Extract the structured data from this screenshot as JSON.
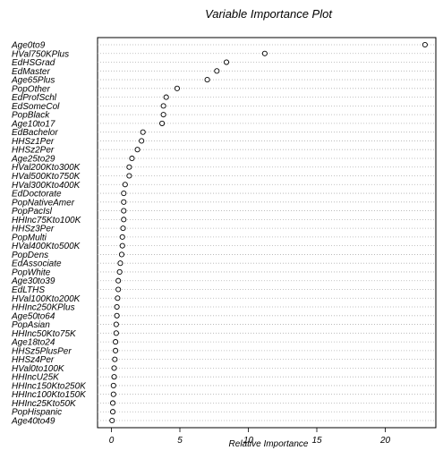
{
  "chart_data": {
    "type": "scatter",
    "title": "Variable Importance Plot",
    "xlabel": "Relative Importance",
    "ylabel": "",
    "xlim": [
      -1,
      24
    ],
    "xticks": [
      0,
      5,
      10,
      15,
      20
    ],
    "grid": "horizontal-dotted",
    "variables": [
      "Age0to9",
      "HVal750KPlus",
      "EdHSGrad",
      "EdMaster",
      "Age65Plus",
      "PopOther",
      "EdProfSchl",
      "EdSomeCol",
      "PopBlack",
      "Age10to17",
      "EdBachelor",
      "HHSz1Per",
      "HHSz2Per",
      "Age25to29",
      "HVal200Kto300K",
      "HVal500Kto750K",
      "HVal300Kto400K",
      "EdDoctorate",
      "PopNativeAmer",
      "PopPacIsl",
      "HHInc75Kto100K",
      "HHSz3Per",
      "PopMulti",
      "HVal400Kto500K",
      "PopDens",
      "EdAssociate",
      "PopWhite",
      "Age30to39",
      "EdLTHS",
      "HVal100Kto200K",
      "HHInc250KPlus",
      "Age50to64",
      "PopAsian",
      "HHInc50Kto75K",
      "Age18to24",
      "HHSz5PlusPer",
      "HHSz4Per",
      "HVal0to100K",
      "HHIncU25K",
      "HHInc150Kto250K",
      "HHInc100Kto150K",
      "HHInc25Kto50K",
      "PopHispanic",
      "Age40to49"
    ],
    "values": [
      22.9,
      11.2,
      8.4,
      7.7,
      7.0,
      4.8,
      4.0,
      3.8,
      3.8,
      3.7,
      2.3,
      2.2,
      1.9,
      1.5,
      1.3,
      1.3,
      1.0,
      0.9,
      0.9,
      0.9,
      0.9,
      0.85,
      0.8,
      0.8,
      0.75,
      0.65,
      0.6,
      0.5,
      0.5,
      0.45,
      0.4,
      0.4,
      0.35,
      0.35,
      0.3,
      0.3,
      0.25,
      0.2,
      0.2,
      0.15,
      0.15,
      0.1,
      0.1,
      0.05
    ]
  }
}
